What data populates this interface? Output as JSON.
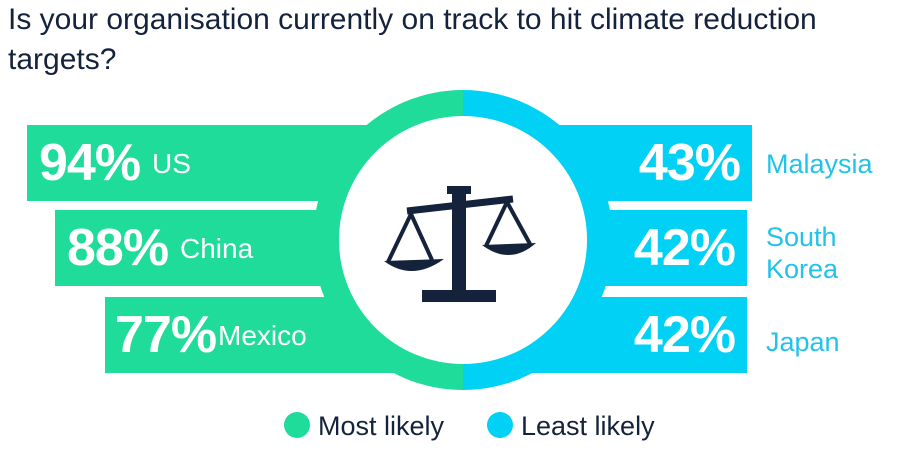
{
  "chart_data": {
    "type": "bar",
    "title": "Is your organisation currently on track to hit climate reduction targets?",
    "series": [
      {
        "name": "Most likely",
        "color": "#1fdc9a",
        "categories": [
          "US",
          "China",
          "Mexico"
        ],
        "values": [
          94,
          88,
          77
        ],
        "labels": [
          "94%",
          "88%",
          "77%"
        ]
      },
      {
        "name": "Least likely",
        "color": "#00d1f5",
        "categories": [
          "Malaysia",
          "South Korea",
          "Japan"
        ],
        "values": [
          43,
          42,
          42
        ],
        "labels": [
          "43%",
          "42%",
          "42%"
        ]
      }
    ],
    "center_icon": "scales-of-justice-icon"
  },
  "legend": {
    "most": "Most likely",
    "least": "Least likely"
  }
}
